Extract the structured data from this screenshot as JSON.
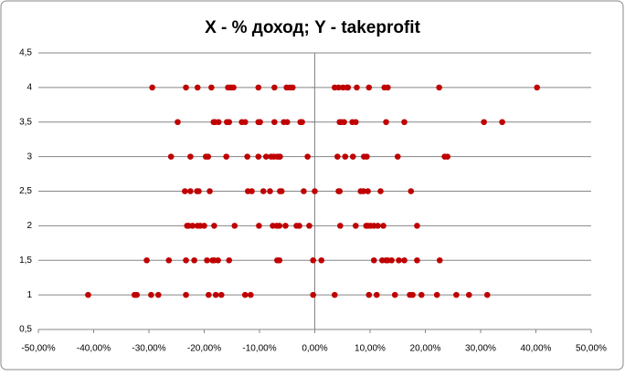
{
  "chart_data": {
    "type": "scatter",
    "title": "X - % доход; Y - takeprofit",
    "series": [
      {
        "color": "#c00000",
        "x": [
          -29.4,
          -23.3,
          -21.2,
          -18.7,
          -15.7,
          -15.2,
          -14.7,
          -10.2,
          -7.3,
          -5.1,
          -4.5,
          -4.0,
          3.6,
          4.3,
          5.1,
          5.8,
          6.0,
          7.6,
          9.8,
          12.6,
          13.2,
          22.5,
          40.2,
          -24.8,
          -18.3,
          -18.0,
          -17.4,
          -15.9,
          -15.5,
          -13.2,
          -12.6,
          -10.2,
          -9.9,
          -7.3,
          -5.6,
          -5.0,
          -2.6,
          -2.3,
          4.5,
          4.8,
          5.3,
          6.8,
          7.4,
          12.9,
          16.2,
          30.6,
          33.9,
          -26.0,
          -22.5,
          -19.7,
          -19.3,
          -16.0,
          -12.2,
          -10.2,
          -8.8,
          -7.9,
          -7.4,
          -6.8,
          -6.4,
          -6.3,
          -1.3,
          4.1,
          5.5,
          6.9,
          8.9,
          9.4,
          15.0,
          23.5,
          24.0,
          -23.5,
          -22.5,
          -21.3,
          -21.0,
          -19.0,
          -12.1,
          -11.4,
          -9.3,
          -8.1,
          -6.3,
          -6.0,
          -2.0,
          0,
          4.3,
          4.5,
          8.3,
          8.8,
          9.6,
          11.9,
          17.4,
          -23.1,
          -22.8,
          -22.1,
          -21.2,
          -20.7,
          -20.0,
          -18.2,
          -14.5,
          -10.1,
          -7.6,
          -6.9,
          -6.4,
          -5.3,
          -3.3,
          -2.8,
          -1.0,
          4.6,
          7.4,
          9.3,
          9.6,
          10.1,
          10.7,
          11.4,
          12.4,
          18.5,
          -30.4,
          -26.4,
          -23.3,
          -21.8,
          -19.5,
          -18.5,
          -18.2,
          -17.5,
          -15.5,
          -6.8,
          -6.4,
          -0.3,
          1.2,
          10.7,
          12.2,
          12.9,
          13.2,
          13.9,
          15.2,
          16.2,
          18.5,
          22.6,
          -41.0,
          -32.6,
          -32.2,
          -29.6,
          -28.3,
          -23.3,
          -19.2,
          -17.9,
          -16.9,
          -12.6,
          -11.6,
          -0.3,
          3.6,
          9.8,
          11.2,
          14.5,
          17.2,
          17.7,
          19.3,
          22.1,
          25.6,
          27.9,
          31.2
        ],
        "y": [
          4,
          4,
          4,
          4,
          4,
          4,
          4,
          4,
          4,
          4,
          4,
          4,
          4,
          4,
          4,
          4,
          4,
          4,
          4,
          4,
          4,
          4,
          4,
          3.5,
          3.5,
          3.5,
          3.5,
          3.5,
          3.5,
          3.5,
          3.5,
          3.5,
          3.5,
          3.5,
          3.5,
          3.5,
          3.5,
          3.5,
          3.5,
          3.5,
          3.5,
          3.5,
          3.5,
          3.5,
          3.5,
          3.5,
          3.5,
          3,
          3,
          3,
          3,
          3,
          3,
          3,
          3,
          3,
          3,
          3,
          3,
          3,
          3,
          3,
          3,
          3,
          3,
          3,
          3,
          3,
          3,
          2.5,
          2.5,
          2.5,
          2.5,
          2.5,
          2.5,
          2.5,
          2.5,
          2.5,
          2.5,
          2.5,
          2.5,
          2.5,
          2.5,
          2.5,
          2.5,
          2.5,
          2.5,
          2.5,
          2.5,
          2,
          2,
          2,
          2,
          2,
          2,
          2,
          2,
          2,
          2,
          2,
          2,
          2,
          2,
          2,
          2,
          2,
          2,
          2,
          2,
          2,
          2,
          2,
          2,
          2,
          1.5,
          1.5,
          1.5,
          1.5,
          1.5,
          1.5,
          1.5,
          1.5,
          1.5,
          1.5,
          1.5,
          1.5,
          1.5,
          1.5,
          1.5,
          1.5,
          1.5,
          1.5,
          1.5,
          1.5,
          1.5,
          1.5,
          1,
          1,
          1,
          1,
          1,
          1,
          1,
          1,
          1,
          1,
          1,
          1,
          1,
          1,
          1,
          1,
          1,
          1,
          1,
          1,
          1,
          1,
          1
        ]
      }
    ],
    "xlim": [
      -50,
      50
    ],
    "xticks": [
      {
        "value": -50,
        "label": "-50,00%"
      },
      {
        "value": -40,
        "label": "-40,00%"
      },
      {
        "value": -30,
        "label": "-30,00%"
      },
      {
        "value": -20,
        "label": "-20,00%"
      },
      {
        "value": -10,
        "label": "-10,00%"
      },
      {
        "value": 0,
        "label": "0,00%"
      },
      {
        "value": 10,
        "label": "10,00%"
      },
      {
        "value": 20,
        "label": "20,00%"
      },
      {
        "value": 30,
        "label": "30,00%"
      },
      {
        "value": 40,
        "label": "40,00%"
      },
      {
        "value": 50,
        "label": "50,00%"
      }
    ],
    "ylim": [
      0.5,
      4.5
    ],
    "yticks": [
      {
        "value": 0.5,
        "label": "0,5"
      },
      1,
      {
        "value": 1.5,
        "label": "1,5"
      },
      2,
      {
        "value": 2.5,
        "label": "2,5"
      },
      3,
      {
        "value": 3.5,
        "label": "3,5"
      },
      4,
      {
        "value": 4.5,
        "label": "4,5"
      }
    ],
    "grid": true
  }
}
